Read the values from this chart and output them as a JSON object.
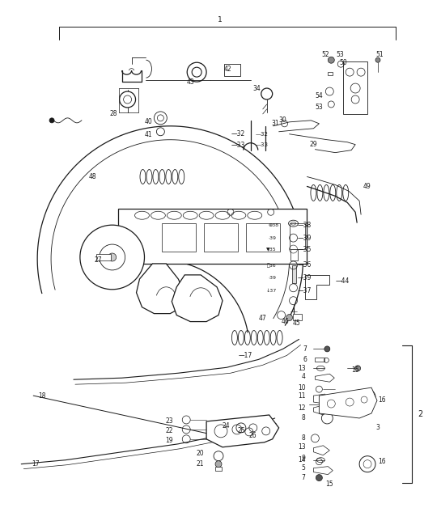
{
  "bg_color": "#ffffff",
  "lc": "#1a1a1a",
  "figsize": [
    5.45,
    6.28
  ],
  "dpi": 100,
  "fs": 5.5,
  "fs_sm": 5.0
}
